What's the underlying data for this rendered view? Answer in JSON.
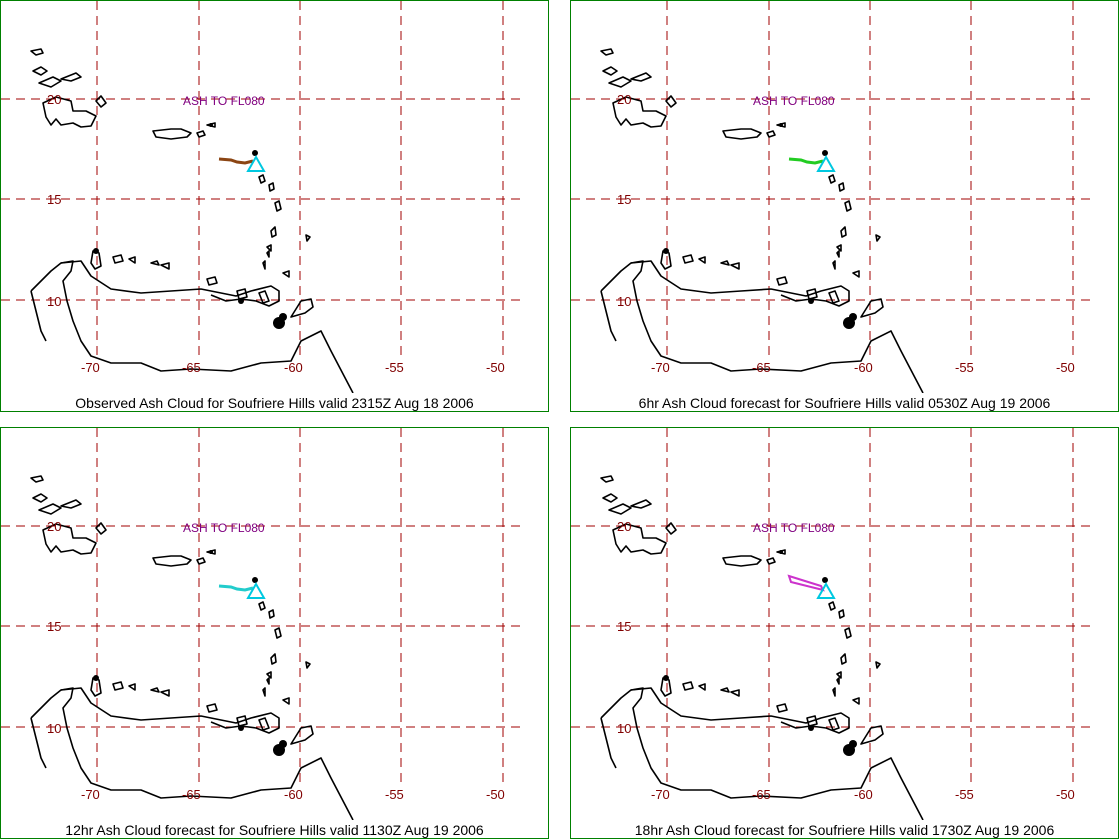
{
  "panels": [
    {
      "caption": "Observed Ash Cloud for Soufriere  Hills valid 2315Z Aug 18 2006",
      "annotation": "ASH TO FL080",
      "cloud_color": "#8b4513",
      "cloud_shape": "line"
    },
    {
      "caption": "6hr Ash Cloud forecast for Soufriere  Hills valid 0530Z Aug 19 2006",
      "annotation": "ASH TO FL080",
      "cloud_color": "#22cc22",
      "cloud_shape": "line"
    },
    {
      "caption": "12hr Ash Cloud forecast for Soufriere  Hills valid 1130Z Aug 19 2006",
      "annotation": "ASH TO FL080",
      "cloud_color": "#22cccc",
      "cloud_shape": "line"
    },
    {
      "caption": "18hr Ash Cloud forecast for Soufriere  Hills valid 1730Z Aug 19 2006",
      "annotation": "ASH TO FL080",
      "cloud_color": "#cc33cc",
      "cloud_shape": "wedge"
    }
  ],
  "axes": {
    "lon_labels": [
      "-70",
      "-65",
      "-60",
      "-55",
      "-50"
    ],
    "lat_labels": [
      "20",
      "15",
      "10"
    ]
  },
  "volcano_marker_color": "#00c8e0",
  "grid_color": "#a00000",
  "border_color": "#008000"
}
